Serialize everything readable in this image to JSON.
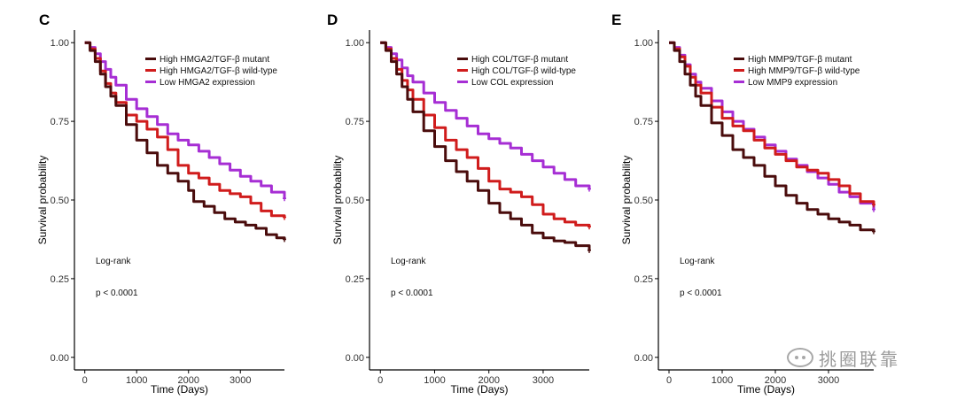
{
  "chart_data": [
    {
      "panel": "C",
      "type": "line",
      "xlabel": "Time (Days)",
      "ylabel": "Survival probability",
      "xlim": [
        -200,
        3850
      ],
      "ylim": [
        -0.04,
        1.04
      ],
      "xticks": [
        0,
        1000,
        2000,
        3000
      ],
      "yticks": [
        0.0,
        0.25,
        0.5,
        0.75,
        1.0
      ],
      "yticklabels": [
        "0.00",
        "0.25",
        "0.50",
        "0.75",
        "1.00"
      ],
      "legend_position": "top-right",
      "annotation": {
        "test": "Log-rank",
        "pvalue": "p < 0.0001"
      },
      "series": [
        {
          "name": "High HMGA2/TGF-β mutant",
          "color": "#4a0c0c",
          "x": [
            0,
            100,
            200,
            300,
            400,
            500,
            600,
            800,
            1000,
            1200,
            1400,
            1600,
            1800,
            2000,
            2100,
            2300,
            2500,
            2700,
            2900,
            3100,
            3300,
            3500,
            3700,
            3850
          ],
          "y": [
            1.0,
            0.975,
            0.94,
            0.9,
            0.86,
            0.83,
            0.8,
            0.74,
            0.69,
            0.65,
            0.61,
            0.585,
            0.56,
            0.53,
            0.495,
            0.48,
            0.46,
            0.44,
            0.43,
            0.42,
            0.41,
            0.39,
            0.38,
            0.375
          ]
        },
        {
          "name": "High HMGA2/TGF-β wild-type",
          "color": "#d01c1c",
          "x": [
            0,
            100,
            200,
            300,
            400,
            500,
            600,
            800,
            1000,
            1200,
            1400,
            1600,
            1800,
            2000,
            2200,
            2400,
            2600,
            2800,
            3000,
            3200,
            3400,
            3600,
            3850
          ],
          "y": [
            1.0,
            0.98,
            0.95,
            0.91,
            0.87,
            0.84,
            0.81,
            0.77,
            0.75,
            0.725,
            0.7,
            0.66,
            0.61,
            0.585,
            0.57,
            0.55,
            0.53,
            0.52,
            0.51,
            0.49,
            0.465,
            0.45,
            0.445
          ]
        },
        {
          "name": "Low HMGA2 expression",
          "color": "#a62ed4",
          "x": [
            0,
            100,
            200,
            300,
            400,
            500,
            600,
            800,
            1000,
            1200,
            1400,
            1600,
            1800,
            2000,
            2200,
            2400,
            2600,
            2800,
            3000,
            3200,
            3400,
            3600,
            3850
          ],
          "y": [
            1.0,
            0.985,
            0.965,
            0.94,
            0.915,
            0.89,
            0.865,
            0.82,
            0.79,
            0.765,
            0.74,
            0.71,
            0.69,
            0.675,
            0.655,
            0.635,
            0.615,
            0.595,
            0.575,
            0.56,
            0.545,
            0.525,
            0.505
          ]
        }
      ]
    },
    {
      "panel": "D",
      "type": "line",
      "xlabel": "Time (Days)",
      "ylabel": "Survival probability",
      "xlim": [
        -200,
        3850
      ],
      "ylim": [
        -0.04,
        1.04
      ],
      "xticks": [
        0,
        1000,
        2000,
        3000
      ],
      "yticks": [
        0.0,
        0.25,
        0.5,
        0.75,
        1.0
      ],
      "yticklabels": [
        "0.00",
        "0.25",
        "0.50",
        "0.75",
        "1.00"
      ],
      "legend_position": "top-right",
      "annotation": {
        "test": "Log-rank",
        "pvalue": "p < 0.0001"
      },
      "series": [
        {
          "name": "High COL/TGF-β mutant",
          "color": "#4a0c0c",
          "x": [
            0,
            100,
            200,
            300,
            400,
            500,
            600,
            800,
            1000,
            1200,
            1400,
            1600,
            1800,
            2000,
            2200,
            2400,
            2600,
            2800,
            3000,
            3200,
            3400,
            3600,
            3850
          ],
          "y": [
            1.0,
            0.975,
            0.94,
            0.9,
            0.86,
            0.82,
            0.78,
            0.72,
            0.67,
            0.625,
            0.59,
            0.56,
            0.53,
            0.49,
            0.46,
            0.44,
            0.42,
            0.395,
            0.38,
            0.37,
            0.365,
            0.355,
            0.34
          ]
        },
        {
          "name": "High COL/TGF-β wild-type",
          "color": "#d01c1c",
          "x": [
            0,
            100,
            200,
            300,
            400,
            500,
            600,
            800,
            1000,
            1200,
            1400,
            1600,
            1800,
            2000,
            2200,
            2400,
            2600,
            2800,
            3000,
            3200,
            3400,
            3600,
            3850
          ],
          "y": [
            1.0,
            0.98,
            0.95,
            0.915,
            0.88,
            0.85,
            0.82,
            0.77,
            0.73,
            0.69,
            0.66,
            0.635,
            0.6,
            0.56,
            0.535,
            0.525,
            0.51,
            0.485,
            0.455,
            0.44,
            0.43,
            0.42,
            0.415
          ]
        },
        {
          "name": "Low COL expression",
          "color": "#a62ed4",
          "x": [
            0,
            100,
            200,
            300,
            400,
            500,
            600,
            800,
            1000,
            1200,
            1400,
            1600,
            1800,
            2000,
            2200,
            2400,
            2600,
            2800,
            3000,
            3200,
            3400,
            3600,
            3850
          ],
          "y": [
            1.0,
            0.985,
            0.965,
            0.945,
            0.92,
            0.895,
            0.875,
            0.84,
            0.81,
            0.785,
            0.76,
            0.735,
            0.71,
            0.695,
            0.68,
            0.665,
            0.645,
            0.625,
            0.605,
            0.585,
            0.565,
            0.545,
            0.535
          ]
        }
      ]
    },
    {
      "panel": "E",
      "type": "line",
      "xlabel": "Time (Days)",
      "ylabel": "Survival probability",
      "xlim": [
        -200,
        3850
      ],
      "ylim": [
        -0.04,
        1.04
      ],
      "xticks": [
        0,
        1000,
        2000,
        3000
      ],
      "yticks": [
        0.0,
        0.25,
        0.5,
        0.75,
        1.0
      ],
      "yticklabels": [
        "0.00",
        "0.25",
        "0.50",
        "0.75",
        "1.00"
      ],
      "legend_position": "top-right",
      "annotation": {
        "test": "Log-rank",
        "pvalue": "p < 0.0001"
      },
      "series": [
        {
          "name": "High MMP9/TGF-β mutant",
          "color": "#4a0c0c",
          "x": [
            0,
            100,
            200,
            300,
            400,
            500,
            600,
            800,
            1000,
            1200,
            1400,
            1600,
            1800,
            2000,
            2200,
            2400,
            2600,
            2800,
            3000,
            3200,
            3400,
            3600,
            3850
          ],
          "y": [
            1.0,
            0.975,
            0.94,
            0.9,
            0.865,
            0.83,
            0.8,
            0.745,
            0.705,
            0.66,
            0.635,
            0.61,
            0.575,
            0.545,
            0.515,
            0.49,
            0.47,
            0.455,
            0.44,
            0.43,
            0.42,
            0.405,
            0.4
          ]
        },
        {
          "name": "High MMP9/TGF-β wild-type",
          "color": "#d01c1c",
          "x": [
            0,
            100,
            200,
            300,
            400,
            500,
            600,
            800,
            1000,
            1200,
            1400,
            1600,
            1800,
            2000,
            2200,
            2400,
            2600,
            2800,
            3000,
            3200,
            3400,
            3600,
            3850
          ],
          "y": [
            1.0,
            0.98,
            0.955,
            0.925,
            0.89,
            0.865,
            0.84,
            0.795,
            0.76,
            0.735,
            0.72,
            0.69,
            0.665,
            0.645,
            0.625,
            0.605,
            0.595,
            0.585,
            0.565,
            0.545,
            0.52,
            0.495,
            0.485
          ]
        },
        {
          "name": "Low MMP9 expression",
          "color": "#a62ed4",
          "x": [
            0,
            100,
            200,
            300,
            400,
            500,
            600,
            800,
            1000,
            1200,
            1400,
            1600,
            1800,
            2000,
            2200,
            2400,
            2600,
            2800,
            3000,
            3200,
            3400,
            3600,
            3850
          ],
          "y": [
            1.0,
            0.985,
            0.96,
            0.93,
            0.9,
            0.875,
            0.855,
            0.815,
            0.78,
            0.75,
            0.725,
            0.7,
            0.675,
            0.655,
            0.63,
            0.61,
            0.59,
            0.57,
            0.55,
            0.525,
            0.51,
            0.49,
            0.47
          ]
        }
      ]
    }
  ],
  "watermark": {
    "text": "挑圈联靠",
    "icon": "wechat-icon"
  }
}
